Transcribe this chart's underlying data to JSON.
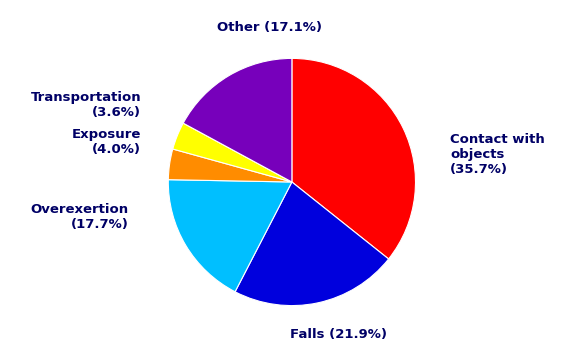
{
  "slices": [
    {
      "label": "Contact with\nobjects\n(35.7%)",
      "value": 35.7,
      "color": "#ff0000"
    },
    {
      "label": "Falls (21.9%)",
      "value": 21.9,
      "color": "#0000dd"
    },
    {
      "label": "Overexertion\n(17.7%)",
      "value": 17.7,
      "color": "#00bfff"
    },
    {
      "label": "Exposure\n(4.0%)",
      "value": 4.0,
      "color": "#ff8c00"
    },
    {
      "label": "Transportation\n(3.6%)",
      "value": 3.6,
      "color": "#ffff00"
    },
    {
      "label": "Other (17.1%)",
      "value": 17.1,
      "color": "#7700bb"
    }
  ],
  "startangle": 90,
  "figsize": [
    5.8,
    3.64
  ],
  "dpi": 100,
  "label_params": [
    {
      "xt": 1.28,
      "yt": 0.22,
      "ha": "left",
      "va": "center"
    },
    {
      "xt": 0.38,
      "yt": -1.18,
      "ha": "center",
      "va": "top"
    },
    {
      "xt": -1.32,
      "yt": -0.28,
      "ha": "right",
      "va": "center"
    },
    {
      "xt": -1.22,
      "yt": 0.32,
      "ha": "right",
      "va": "center"
    },
    {
      "xt": -1.22,
      "yt": 0.62,
      "ha": "right",
      "va": "center"
    },
    {
      "xt": -0.18,
      "yt": 1.2,
      "ha": "center",
      "va": "bottom"
    }
  ],
  "fontsize": 9.5
}
